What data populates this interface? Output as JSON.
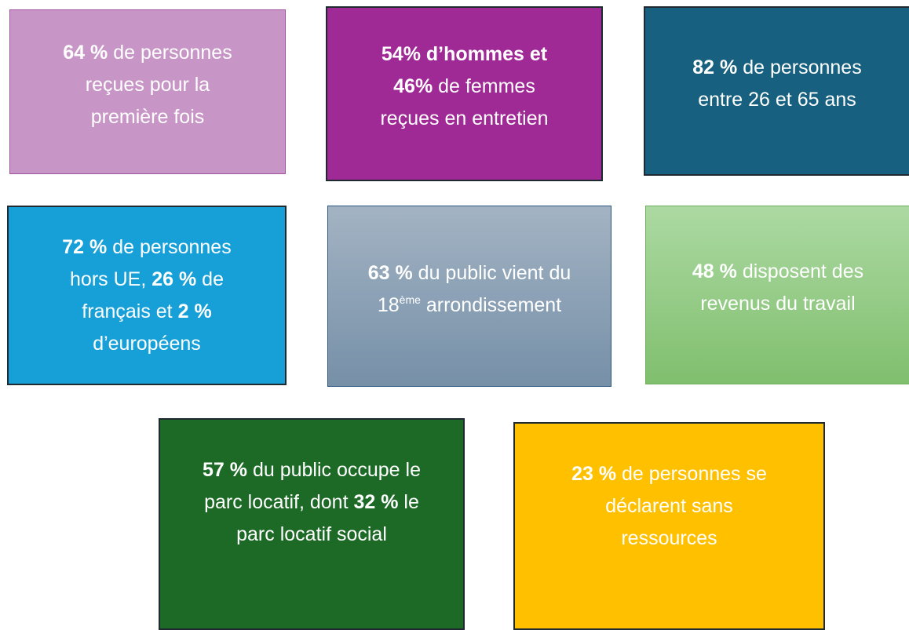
{
  "boxes": [
    {
      "color": "#c896c6",
      "lines": [
        [
          {
            "text": "64 %",
            "bold": true
          },
          {
            "text": "de personnes"
          }
        ],
        [
          {
            "text": "reçues pour la"
          }
        ],
        [
          {
            "text": "première fois"
          }
        ]
      ]
    },
    {
      "color": "#9f2a95",
      "lines": [
        [
          {
            "text": "54% d’hommes et",
            "bold": true
          }
        ],
        [
          {
            "text": "46%",
            "bold": true
          },
          {
            "text": "de femmes"
          }
        ],
        [
          {
            "text": "reçues en entretien"
          }
        ]
      ]
    },
    {
      "color": "#17607f",
      "lines": [
        [
          {
            "text": "82 %",
            "bold": true
          },
          {
            "text": "de personnes"
          }
        ],
        [
          {
            "text": "entre 26 et 65 ans"
          }
        ]
      ]
    },
    {
      "color": "#16a0d7",
      "lines": [
        [
          {
            "text": "72 %",
            "bold": true
          },
          {
            "text": "de personnes"
          }
        ],
        [
          {
            "text": "hors UE,"
          },
          {
            "text": "26 %",
            "bold": true
          },
          {
            "text": "de"
          }
        ],
        [
          {
            "text": "français et"
          },
          {
            "text": "2 %",
            "bold": true
          }
        ],
        [
          {
            "text": "d’européens"
          }
        ]
      ]
    },
    {
      "color": "#8ea2b6",
      "lines": [
        [
          {
            "text": "63 %",
            "bold": true
          },
          {
            "text": "du public vient du"
          }
        ],
        [
          {
            "text": "18"
          },
          {
            "text": "ème",
            "sup": true
          },
          {
            "text": "arrondissement"
          }
        ]
      ]
    },
    {
      "color": "#96cc88",
      "lines": [
        [
          {
            "text": "48 %",
            "bold": true
          },
          {
            "text": "disposent des"
          }
        ],
        [
          {
            "text": "revenus du travail"
          }
        ]
      ]
    },
    {
      "color": "#1d6a27",
      "lines": [
        [
          {
            "text": "57 %",
            "bold": true
          },
          {
            "text": "du public occupe le"
          }
        ],
        [
          {
            "text": "parc locatif, dont"
          },
          {
            "text": "32 %",
            "bold": true
          },
          {
            "text": "le"
          }
        ],
        [
          {
            "text": "parc locatif social"
          }
        ]
      ]
    },
    {
      "color": "#ffc000",
      "lines": [
        [
          {
            "text": "23 %",
            "bold": true
          },
          {
            "text": "de personnes se"
          }
        ],
        [
          {
            "text": "déclarent sans"
          }
        ],
        [
          {
            "text": "ressources"
          }
        ]
      ]
    }
  ]
}
